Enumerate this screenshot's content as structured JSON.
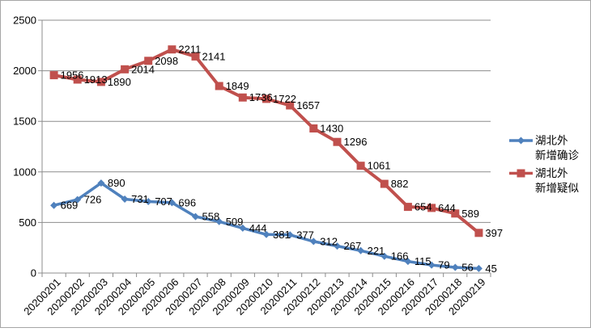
{
  "chart_data": {
    "type": "line",
    "title": "",
    "categories": [
      "20200201",
      "20200202",
      "20200203",
      "20200204",
      "20200205",
      "20200206",
      "20200207",
      "20200208",
      "20200209",
      "20200210",
      "20200211",
      "20200212",
      "20200213",
      "20200214",
      "20200215",
      "20200216",
      "20200217",
      "20200218",
      "20200219"
    ],
    "series": [
      {
        "name": "湖北外新增确诊",
        "legend_lines": [
          "湖北外",
          "新增确诊"
        ],
        "color": "#4F81BD",
        "marker": "diamond",
        "values": [
          669,
          726,
          890,
          731,
          707,
          696,
          558,
          509,
          444,
          381,
          377,
          312,
          267,
          221,
          166,
          115,
          79,
          56,
          45
        ]
      },
      {
        "name": "湖北外新增疑似",
        "legend_lines": [
          "湖北外",
          "新增疑似"
        ],
        "color": "#C0504D",
        "marker": "square",
        "values": [
          1956,
          1913,
          1890,
          2014,
          2098,
          2211,
          2141,
          1849,
          1736,
          1722,
          1657,
          1430,
          1296,
          1061,
          882,
          654,
          644,
          589,
          397
        ]
      }
    ],
    "y_axis": {
      "min": 0,
      "max": 2500,
      "step": 500,
      "tick_labels": [
        "0",
        "500",
        "1000",
        "1500",
        "2000",
        "2500"
      ]
    },
    "x_axis": {
      "tick_label_rotation": -45
    },
    "legend_position": "right",
    "grid": true,
    "data_labels": "right",
    "colors": {
      "grid": "#8C8C8C",
      "axis": "#8C8C8C",
      "tick_text": "#000000",
      "data_label_text": "#000000",
      "legend_text": "#000000",
      "border": "#A6A6A6",
      "background": "#FFFFFF"
    }
  }
}
